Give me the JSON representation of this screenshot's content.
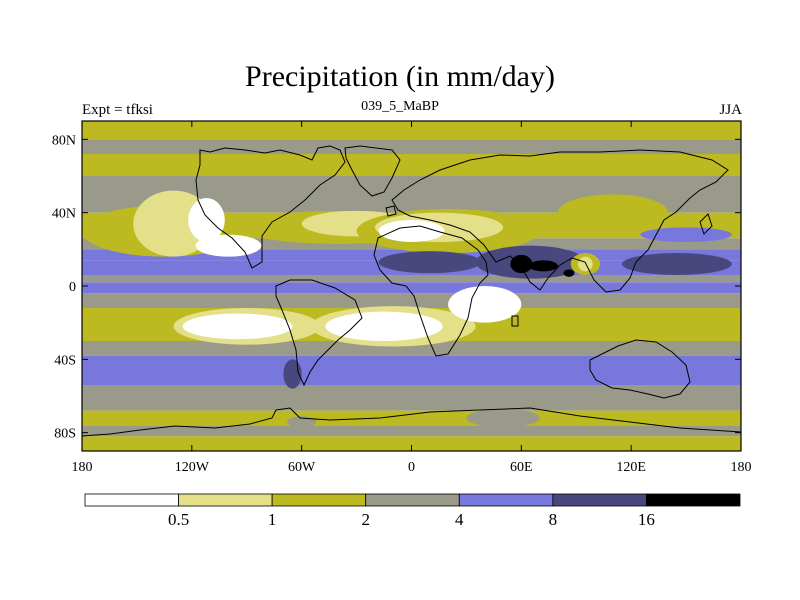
{
  "title": "Precipitation (in mm/day)",
  "subtitle_left": "Expt = tfksi",
  "subtitle_center": "039_5_MaBP",
  "subtitle_right": "JJA",
  "colors": {
    "level0": "#ffffff",
    "level1": "#e4e08a",
    "level2": "#bcba20",
    "level3": "#9a9a8a",
    "level4": "#7878dc",
    "level5": "#48487e",
    "level6": "#000000",
    "coast": "#000000"
  },
  "chart_data": {
    "type": "heatmap",
    "xlim": [
      -180,
      180
    ],
    "ylim": [
      -90,
      90
    ],
    "x_ticks": [
      {
        "value": -180,
        "label": "180"
      },
      {
        "value": -120,
        "label": "120W"
      },
      {
        "value": -60,
        "label": "60W"
      },
      {
        "value": 0,
        "label": "0"
      },
      {
        "value": 60,
        "label": "60E"
      },
      {
        "value": 120,
        "label": "120E"
      },
      {
        "value": 180,
        "label": "180"
      }
    ],
    "y_ticks": [
      {
        "value": 80,
        "label": "80N"
      },
      {
        "value": 40,
        "label": "40N"
      },
      {
        "value": 0,
        "label": "0"
      },
      {
        "value": -40,
        "label": "40S"
      },
      {
        "value": -80,
        "label": "80S"
      }
    ],
    "colorbar": {
      "levels": [
        0.5,
        1,
        2,
        4,
        8,
        16
      ],
      "labels": [
        "0.5",
        "1",
        "2",
        "4",
        "8",
        "16"
      ]
    },
    "lat_bands": [
      {
        "lat": [
          80,
          90
        ],
        "level": 2
      },
      {
        "lat": [
          72,
          80
        ],
        "level": 3
      },
      {
        "lat": [
          60,
          72
        ],
        "level": 2
      },
      {
        "lat": [
          40,
          60
        ],
        "level": 3
      },
      {
        "lat": [
          26,
          40
        ],
        "level": 2
      },
      {
        "lat": [
          20,
          26
        ],
        "level": 3
      },
      {
        "lat": [
          14,
          20
        ],
        "level": 4
      },
      {
        "lat": [
          6,
          14
        ],
        "level": 4
      },
      {
        "lat": [
          2,
          6
        ],
        "level": 3
      },
      {
        "lat": [
          -4,
          2
        ],
        "level": 4
      },
      {
        "lat": [
          -12,
          -4
        ],
        "level": 3
      },
      {
        "lat": [
          -30,
          -12
        ],
        "level": 2
      },
      {
        "lat": [
          -38,
          -30
        ],
        "level": 3
      },
      {
        "lat": [
          -54,
          -38
        ],
        "level": 4
      },
      {
        "lat": [
          -68,
          -54
        ],
        "level": 3
      },
      {
        "lat": [
          -76,
          -68
        ],
        "level": 2
      },
      {
        "lat": [
          -82,
          -76
        ],
        "level": 3
      },
      {
        "lat": [
          -90,
          -82
        ],
        "level": 2
      }
    ],
    "blobs": [
      {
        "lon": -135,
        "lat": 30,
        "rlon": 45,
        "rlat": 14,
        "level": 2
      },
      {
        "lon": -130,
        "lat": 34,
        "rlon": 22,
        "rlat": 18,
        "level": 1
      },
      {
        "lon": -112,
        "lat": 36,
        "rlon": 10,
        "rlat": 12,
        "level": 0
      },
      {
        "lon": -40,
        "lat": 32,
        "rlon": 55,
        "rlat": 9,
        "level": 2
      },
      {
        "lon": -30,
        "lat": 34,
        "rlon": 30,
        "rlat": 7,
        "level": 1
      },
      {
        "lon": -100,
        "lat": 22,
        "rlon": 18,
        "rlat": 6,
        "level": 0
      },
      {
        "lon": 20,
        "lat": 30,
        "rlon": 50,
        "rlat": 12,
        "level": 2
      },
      {
        "lon": 15,
        "lat": 32,
        "rlon": 35,
        "rlat": 8,
        "level": 1
      },
      {
        "lon": 0,
        "lat": 30,
        "rlon": 18,
        "rlat": 6,
        "level": 0
      },
      {
        "lon": 10,
        "lat": 13,
        "rlon": 28,
        "rlat": 6,
        "level": 5
      },
      {
        "lon": 65,
        "lat": 13,
        "rlon": 30,
        "rlat": 9,
        "level": 5
      },
      {
        "lon": 60,
        "lat": 12,
        "rlon": 6,
        "rlat": 5,
        "level": 6
      },
      {
        "lon": 72,
        "lat": 11,
        "rlon": 8,
        "rlat": 3,
        "level": 6
      },
      {
        "lon": 86,
        "lat": 7,
        "rlon": 3,
        "rlat": 2,
        "level": 6
      },
      {
        "lon": 145,
        "lat": 12,
        "rlon": 30,
        "rlat": 6,
        "level": 5
      },
      {
        "lon": 95,
        "lat": 12,
        "rlon": 8,
        "rlat": 6,
        "level": 2
      },
      {
        "lon": 95,
        "lat": 12,
        "rlon": 4,
        "rlat": 4,
        "level": 1
      },
      {
        "lon": 110,
        "lat": 40,
        "rlon": 30,
        "rlat": 10,
        "level": 2
      },
      {
        "lon": 150,
        "lat": 28,
        "rlon": 25,
        "rlat": 4,
        "level": 4
      },
      {
        "lon": -90,
        "lat": -22,
        "rlon": 40,
        "rlat": 10,
        "level": 1
      },
      {
        "lon": -95,
        "lat": -22,
        "rlon": 30,
        "rlat": 7,
        "level": 0
      },
      {
        "lon": -10,
        "lat": -22,
        "rlon": 45,
        "rlat": 11,
        "level": 1
      },
      {
        "lon": -15,
        "lat": -22,
        "rlon": 32,
        "rlat": 8,
        "level": 0
      },
      {
        "lon": 40,
        "lat": -10,
        "rlon": 20,
        "rlat": 10,
        "level": 0
      },
      {
        "lon": 150,
        "lat": -8,
        "rlon": 25,
        "rlat": 3,
        "level": 3
      },
      {
        "lon": -65,
        "lat": -48,
        "rlon": 5,
        "rlat": 8,
        "level": 5
      },
      {
        "lon": 50,
        "lat": -72,
        "rlon": 20,
        "rlat": 5,
        "level": 3
      },
      {
        "lon": -60,
        "lat": -74,
        "rlon": 8,
        "rlat": 3,
        "level": 3
      }
    ]
  }
}
